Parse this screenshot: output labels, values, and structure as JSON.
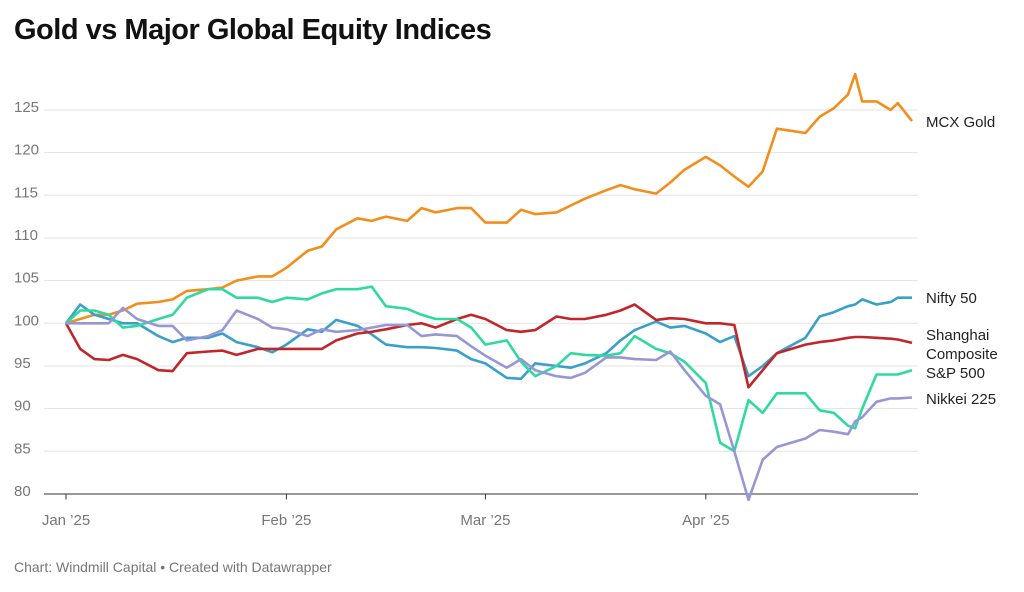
{
  "chart_data": {
    "type": "line",
    "title": "Gold vs Major Global Equity Indices",
    "source": "Chart: Windmill Capital • Created with Datawrapper",
    "x": [
      0,
      2,
      4,
      6,
      8,
      10,
      13,
      15,
      17,
      20,
      22,
      24,
      27,
      29,
      31,
      34,
      36,
      38,
      41,
      43,
      45,
      48,
      50,
      52,
      55,
      57,
      59,
      62,
      64,
      66,
      69,
      71,
      73,
      76,
      78,
      80,
      83,
      85,
      87,
      90,
      92,
      94,
      96,
      98,
      100,
      104,
      106,
      108,
      110,
      111,
      112,
      114,
      116,
      117,
      119
    ],
    "xlim": [
      0,
      119
    ],
    "xticks": [
      {
        "value": 0,
        "label": "Jan ’25"
      },
      {
        "value": 31,
        "label": "Feb ’25"
      },
      {
        "value": 59,
        "label": "Mar ’25"
      },
      {
        "value": 90,
        "label": "Apr ’25"
      }
    ],
    "ylim": [
      79,
      130
    ],
    "yticks": [
      80,
      85,
      90,
      95,
      100,
      105,
      110,
      115,
      120,
      125
    ],
    "grid": true,
    "series": [
      {
        "name": "MCX Gold",
        "color": "#f28e1c",
        "values": [
          100,
          100.5,
          101,
          101,
          101.5,
          102.3,
          102.5,
          102.8,
          103.8,
          104,
          104.2,
          105,
          105.5,
          105.5,
          106.5,
          108.5,
          109,
          111,
          112.3,
          112,
          112.5,
          112,
          113.5,
          113,
          113.5,
          113.5,
          111.8,
          111.8,
          113.3,
          112.8,
          113,
          113.8,
          114.6,
          115.6,
          116.2,
          115.7,
          115.2,
          116.5,
          118,
          119.5,
          118.5,
          117.2,
          116,
          117.8,
          122.8,
          122.3,
          124.2,
          125.2,
          126.8,
          129.2,
          126,
          126,
          125,
          125.8,
          123.7
        ]
      },
      {
        "name": "Nifty 50",
        "color": "#3a9fc9",
        "values": [
          100,
          102.2,
          101,
          100.5,
          100,
          100,
          98.5,
          97.8,
          98.3,
          98.3,
          98.8,
          97.8,
          97.2,
          96.6,
          97.5,
          99.3,
          99,
          100.4,
          99.7,
          98.7,
          97.5,
          97.2,
          97.2,
          97.1,
          96.8,
          95.8,
          95.3,
          93.6,
          93.5,
          95.3,
          95,
          94.8,
          95.3,
          96.5,
          98,
          99.2,
          100.2,
          99.5,
          99.7,
          98.8,
          97.8,
          98.5,
          93.8,
          95,
          96.5,
          98.3,
          100.8,
          101.3,
          102,
          102.2,
          102.8,
          102.2,
          102.5,
          103,
          103
        ]
      },
      {
        "name": "Shanghai Composite",
        "color": "#c0262a",
        "values": [
          100,
          97,
          95.8,
          95.7,
          96.3,
          95.8,
          94.5,
          94.4,
          96.5,
          96.7,
          96.8,
          96.3,
          97,
          97,
          97,
          97,
          97,
          98,
          98.8,
          99,
          99.3,
          99.8,
          100,
          99.5,
          100.5,
          101,
          100.5,
          99.2,
          99,
          99.2,
          100.8,
          100.5,
          100.5,
          101,
          101.5,
          102.2,
          100.4,
          100.6,
          100.5,
          100,
          100,
          99.8,
          92.5,
          94.5,
          96.5,
          97.5,
          97.8,
          98,
          98.3,
          98.4,
          98.4,
          98.3,
          98.2,
          98.1,
          97.7
        ]
      },
      {
        "name": "S&P 500",
        "color": "#30d9a0",
        "values": [
          100,
          101.5,
          101.5,
          101,
          99.5,
          99.7,
          100.5,
          101,
          103,
          104,
          104,
          103,
          103,
          102.5,
          103,
          102.8,
          103.5,
          104,
          104,
          104.3,
          102,
          101.7,
          101,
          100.5,
          100.5,
          99.5,
          97.5,
          98,
          95.5,
          93.8,
          95,
          96.5,
          96.3,
          96.2,
          96.5,
          98.5,
          97,
          96.5,
          95.5,
          93,
          86,
          85,
          91,
          89.5,
          91.8,
          91.8,
          89.8,
          89.5,
          88,
          87.7,
          90,
          94,
          94,
          94,
          94.5
        ]
      },
      {
        "name": "Nikkei 225",
        "color": "#9797d6",
        "values": [
          100,
          100,
          100,
          100,
          101.8,
          100.5,
          99.7,
          99.7,
          98,
          98.5,
          99.2,
          101.5,
          100.5,
          99.5,
          99.3,
          98.5,
          99.3,
          99,
          99.2,
          99.5,
          99.8,
          99.8,
          98.5,
          98.7,
          98.5,
          97.3,
          96.2,
          94.8,
          95.8,
          94.5,
          93.8,
          93.6,
          94.2,
          96,
          96,
          95.8,
          95.7,
          96.7,
          94.5,
          91.5,
          90.5,
          85,
          79.3,
          84,
          85.5,
          86.5,
          87.5,
          87.3,
          87,
          88.5,
          89,
          90.8,
          91.2,
          91.2,
          91.3
        ]
      }
    ]
  }
}
